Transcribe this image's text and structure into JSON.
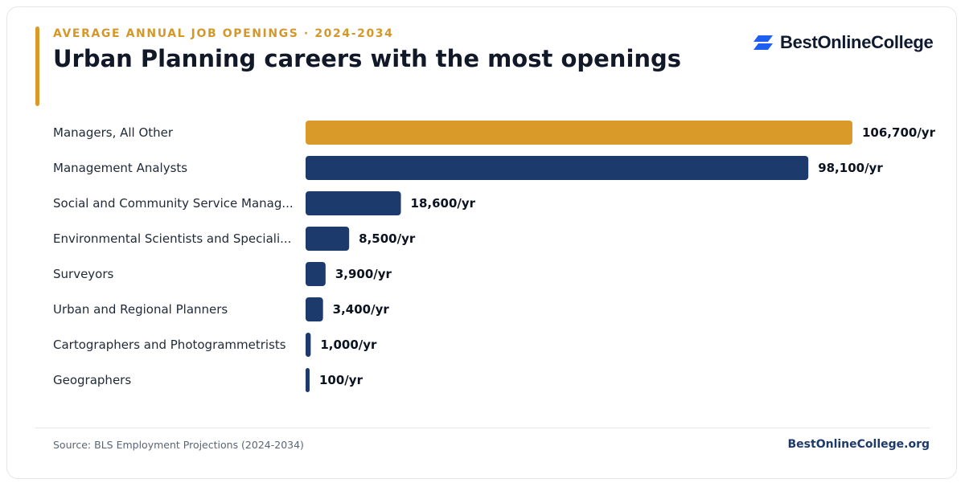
{
  "header": {
    "kicker": "AVERAGE ANNUAL JOB OPENINGS · 2024-2034",
    "title": "Urban Planning careers with the most openings",
    "logo_text": "BestOnlineCollege"
  },
  "footer": {
    "source": "Source: BLS Employment Projections (2024-2034)",
    "site": "BestOnlineCollege.org"
  },
  "colors": {
    "highlight": "#da9a2a",
    "bar": "#1c3a6b",
    "logo_blue": "#1f5ff0"
  },
  "icons": [
    "bestonlinecollege-logo-icon"
  ],
  "chart_data": {
    "type": "bar",
    "orientation": "horizontal",
    "categories": [
      "Managers, All Other",
      "Management Analysts",
      "Social and Community Service Manag...",
      "Environmental Scientists and Speciali...",
      "Surveyors",
      "Urban and Regional Planners",
      "Cartographers and Photogrammetrists",
      "Geographers"
    ],
    "values": [
      106700,
      98100,
      18600,
      8500,
      3900,
      3400,
      1000,
      100
    ],
    "value_labels": [
      "106,700/yr",
      "98,100/yr",
      "18,600/yr",
      "8,500/yr",
      "3,900/yr",
      "3,400/yr",
      "1,000/yr",
      "100/yr"
    ],
    "highlight_index": 0,
    "xlim": [
      0,
      106700
    ],
    "grid": false,
    "legend": "none"
  }
}
